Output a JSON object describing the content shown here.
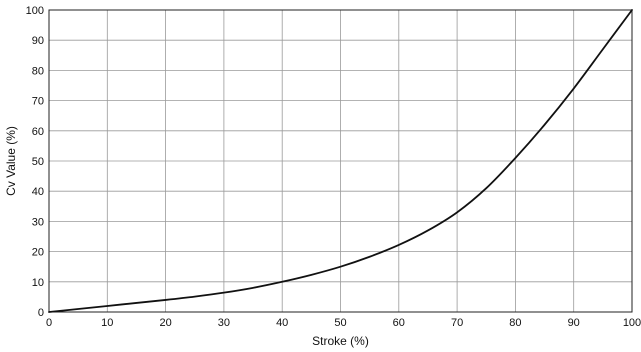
{
  "chart_data": {
    "type": "line",
    "title": "",
    "xlabel": "Stroke (%)",
    "ylabel": "Cv Value (%)",
    "xlim": [
      0,
      100
    ],
    "ylim": [
      0,
      100
    ],
    "grid": true,
    "x_ticks": [
      0,
      10,
      20,
      30,
      40,
      50,
      60,
      70,
      80,
      90,
      100
    ],
    "y_ticks": [
      0,
      10,
      20,
      30,
      40,
      50,
      60,
      70,
      80,
      90,
      100
    ],
    "series": [
      {
        "color": "#111111",
        "x": [
          0,
          5,
          10,
          15,
          20,
          25,
          30,
          35,
          40,
          45,
          50,
          55,
          60,
          65,
          70,
          75,
          80,
          85,
          90,
          95,
          100
        ],
        "y": [
          0,
          1.0,
          2.0,
          3.0,
          4.0,
          5.1,
          6.4,
          8.0,
          10.0,
          12.3,
          15.0,
          18.3,
          22.2,
          27.0,
          33.0,
          41.0,
          51.0,
          62.0,
          74.0,
          87.0,
          100.0
        ]
      }
    ]
  }
}
